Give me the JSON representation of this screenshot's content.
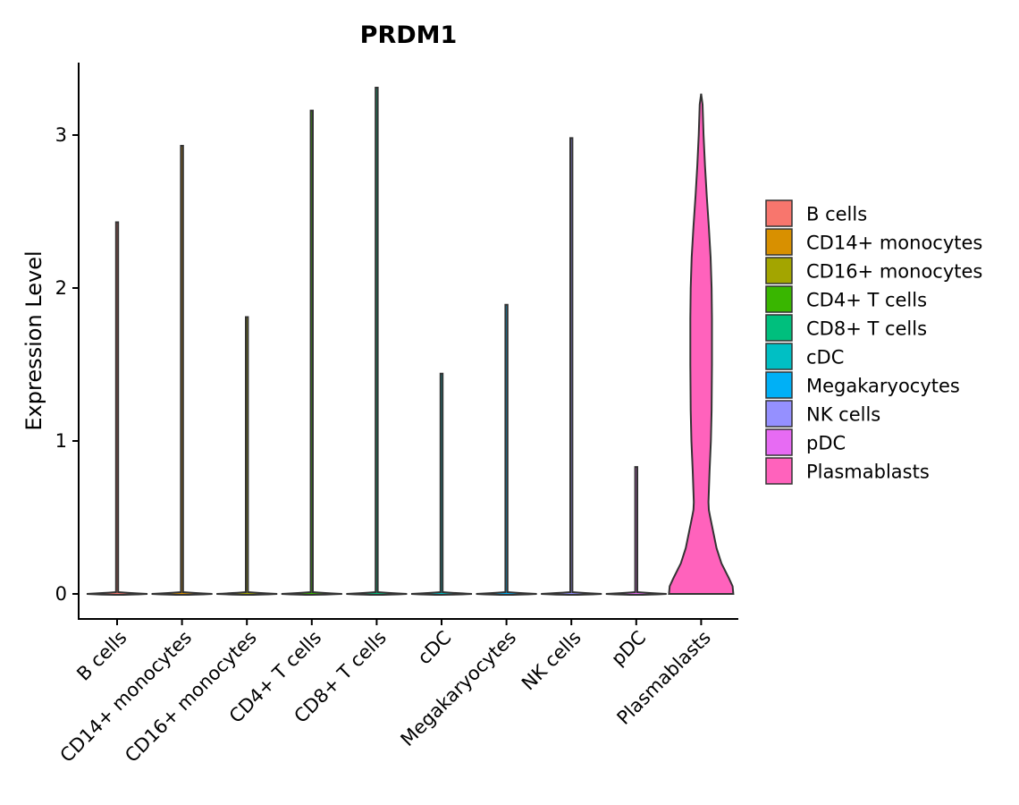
{
  "chart_data": {
    "type": "violin",
    "title": "PRDM1",
    "xlabel": "",
    "ylabel": "Expression Level",
    "ylim": [
      -0.16,
      3.47
    ],
    "yticks": [
      0,
      1,
      2,
      3
    ],
    "categories": [
      "B cells",
      "CD14+ monocytes",
      "CD16+ monocytes",
      "CD4+ T cells",
      "CD8+ T cells",
      "cDC",
      "Megakaryocytes",
      "NK cells",
      "pDC",
      "Plasmablasts"
    ],
    "colors": [
      "#F8766D",
      "#D89000",
      "#A3A500",
      "#39B600",
      "#00BF7D",
      "#00BFC4",
      "#00B0F6",
      "#9590FF",
      "#E76BF3",
      "#FF62BC"
    ],
    "max_values": [
      2.43,
      2.93,
      1.81,
      3.16,
      3.31,
      1.44,
      1.89,
      2.98,
      0.83,
      3.27
    ],
    "plasmablasts_profile": [
      [
        0.0,
        0.92
      ],
      [
        0.05,
        0.9
      ],
      [
        0.1,
        0.8
      ],
      [
        0.2,
        0.58
      ],
      [
        0.3,
        0.44
      ],
      [
        0.4,
        0.35
      ],
      [
        0.5,
        0.26
      ],
      [
        0.55,
        0.22
      ],
      [
        0.6,
        0.21
      ],
      [
        0.8,
        0.24
      ],
      [
        1.0,
        0.28
      ],
      [
        1.2,
        0.3
      ],
      [
        1.5,
        0.31
      ],
      [
        1.8,
        0.31
      ],
      [
        2.0,
        0.3
      ],
      [
        2.2,
        0.27
      ],
      [
        2.4,
        0.22
      ],
      [
        2.6,
        0.16
      ],
      [
        2.8,
        0.11
      ],
      [
        3.0,
        0.07
      ],
      [
        3.2,
        0.04
      ],
      [
        3.27,
        0.0
      ]
    ],
    "legend": {
      "position": "right",
      "entries": [
        "B cells",
        "CD14+ monocytes",
        "CD16+ monocytes",
        "CD4+ T cells",
        "CD8+ T cells",
        "cDC",
        "Megakaryocytes",
        "NK cells",
        "pDC",
        "Plasmablasts"
      ]
    }
  }
}
